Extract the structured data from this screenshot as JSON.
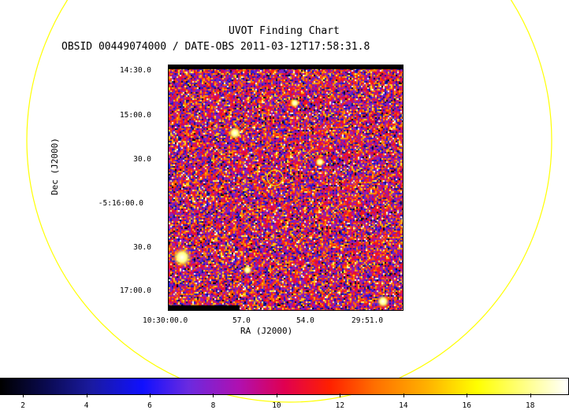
{
  "title": "UVOT Finding Chart",
  "subtitle": "OBSID 00449074000 / DATE-OBS 2011-03-12T17:58:31.8",
  "axes": {
    "xlabel": "RA (J2000)",
    "ylabel": "Dec (J2000)",
    "xticks": [
      "10:30:00.0",
      "57.0",
      "54.0",
      "29:51.0"
    ],
    "yticks": [
      "14:30.0",
      "15:00.0",
      "30.0",
      "-5:16:00.0",
      "30.0",
      "17:00.0"
    ]
  },
  "colorbar": {
    "labels": [
      "2",
      "4",
      "6",
      "8",
      "10",
      "12",
      "14",
      "16",
      "18"
    ],
    "min": 1.3,
    "max": 19.2
  },
  "colors": {
    "ring": "#ffff00",
    "target_marker": "#ffd700"
  }
}
